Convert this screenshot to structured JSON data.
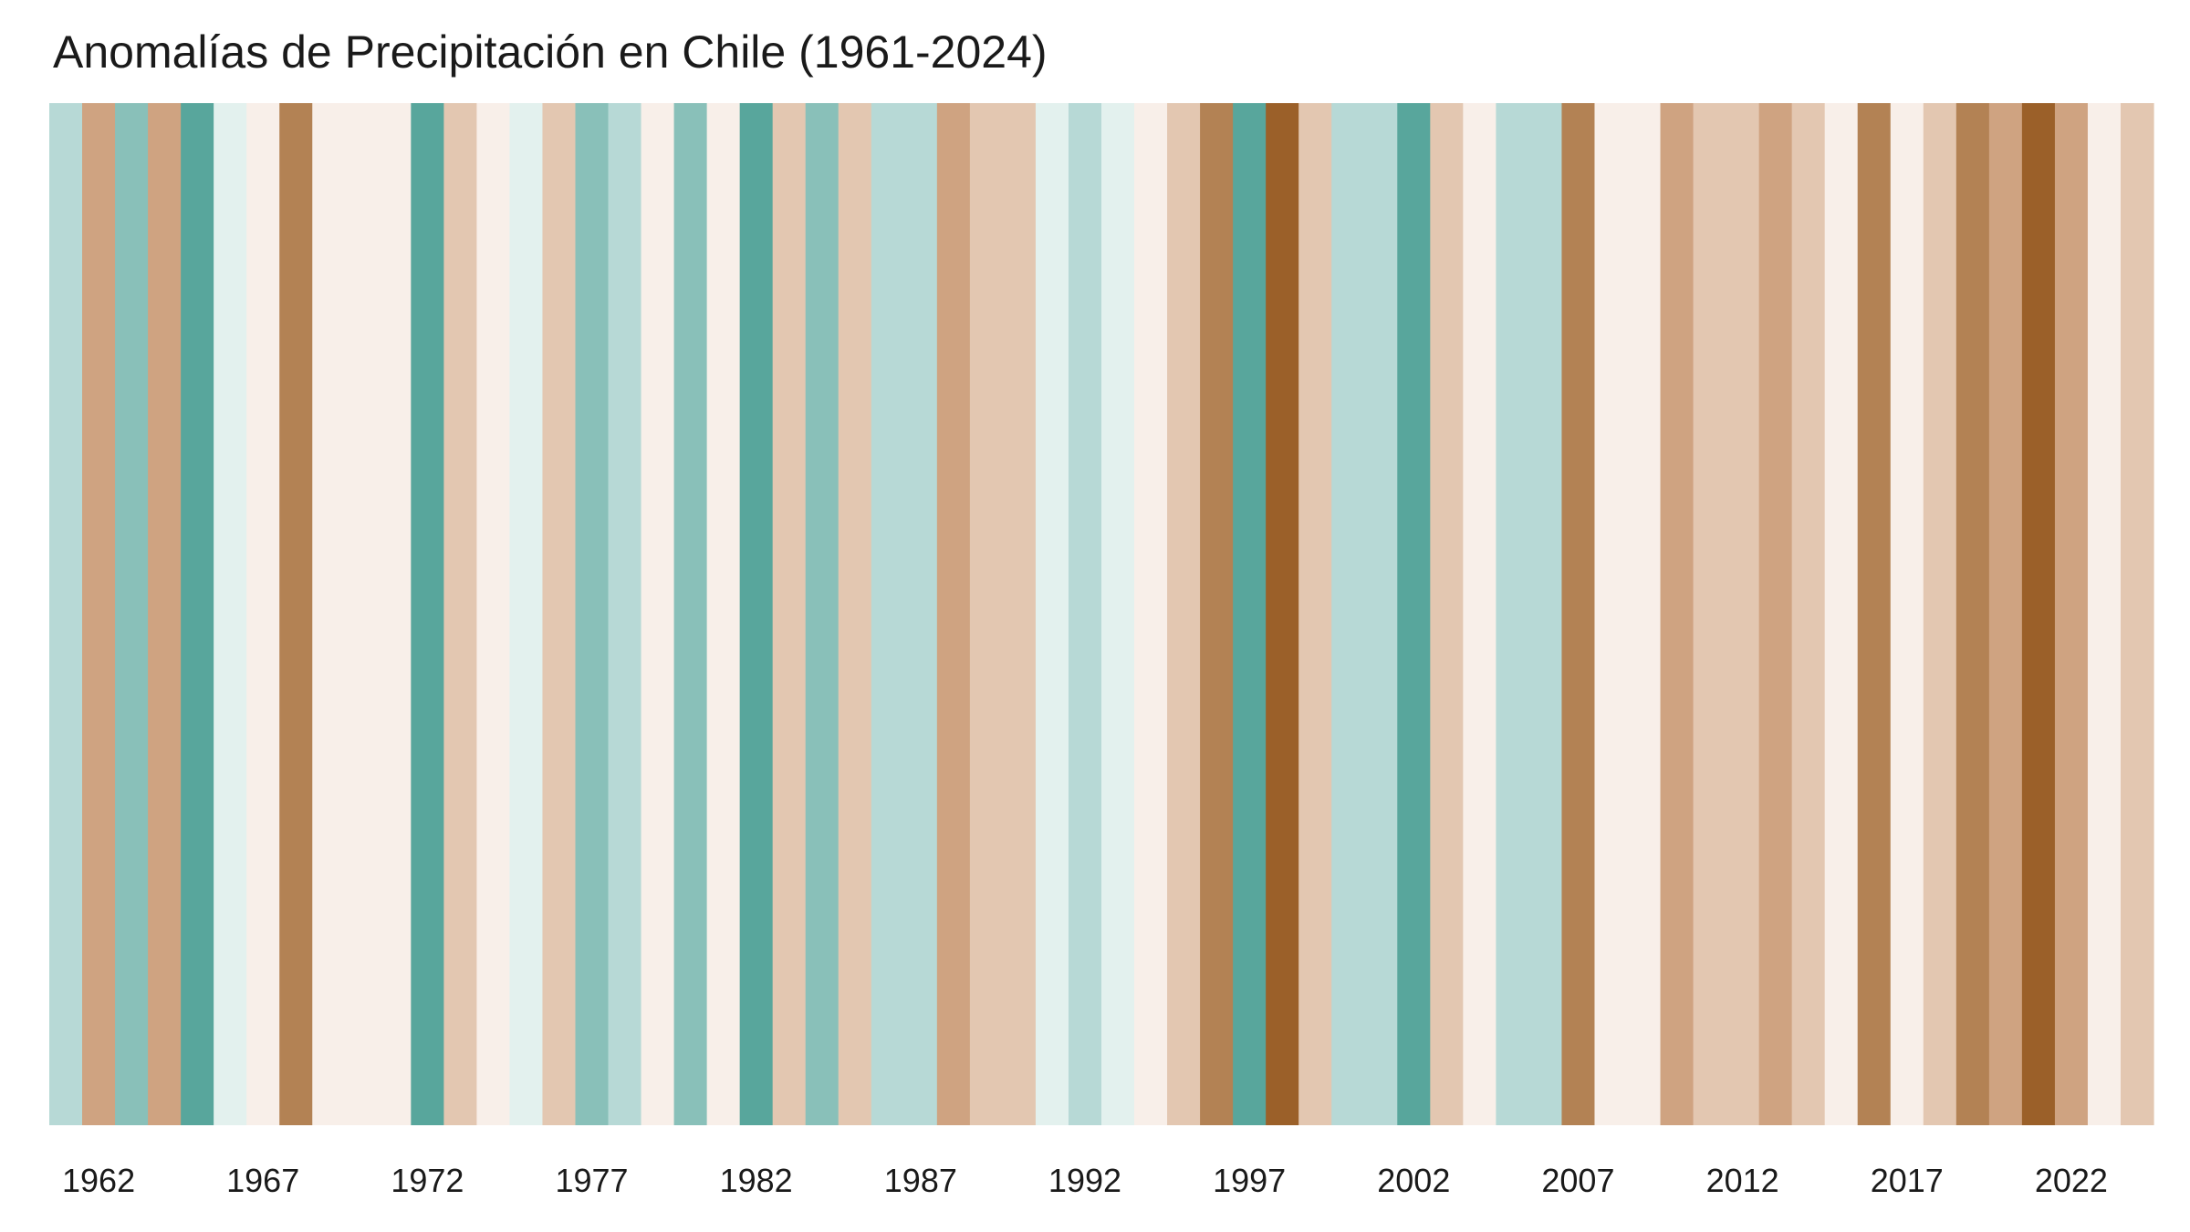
{
  "title": "Anomalías de Precipitación en Chile (1961-2024)",
  "chart_data": {
    "type": "heatmap",
    "title": "Anomalías de Precipitación en Chile (1961-2024)",
    "xlabel": "",
    "ylabel": "",
    "x_range": [
      1961,
      2024
    ],
    "grid": false,
    "legend": "none",
    "tick_labels": [
      "1962",
      "1967",
      "1972",
      "1977",
      "1982",
      "1987",
      "1992",
      "1997",
      "2002",
      "2007",
      "2012",
      "2017",
      "2022"
    ],
    "palette": {
      "wet_strong": "#58a69c",
      "wet_moderate": "#89c0b9",
      "wet_mild": "#b7d9d6",
      "wet_slight": "#e3f1ee",
      "near_normal": "#f8efe9",
      "dry_slight": "#e3c7b1",
      "dry_mild": "#cfa381",
      "dry_moderate": "#b38254",
      "dry_strong": "#9b6029"
    },
    "years": [
      1961,
      1962,
      1963,
      1964,
      1965,
      1966,
      1967,
      1968,
      1969,
      1970,
      1971,
      1972,
      1973,
      1974,
      1975,
      1976,
      1977,
      1978,
      1979,
      1980,
      1981,
      1982,
      1983,
      1984,
      1985,
      1986,
      1987,
      1988,
      1989,
      1990,
      1991,
      1992,
      1993,
      1994,
      1995,
      1996,
      1997,
      1998,
      1999,
      2000,
      2001,
      2002,
      2003,
      2004,
      2005,
      2006,
      2007,
      2008,
      2009,
      2010,
      2011,
      2012,
      2013,
      2014,
      2015,
      2016,
      2017,
      2018,
      2019,
      2020,
      2021,
      2022,
      2023,
      2024
    ],
    "colors": [
      "#b7d9d6",
      "#cfa381",
      "#89c0b9",
      "#cfa381",
      "#58a69c",
      "#e3f1ee",
      "#f8efe9",
      "#b38254",
      "#f8efe9",
      "#f8efe9",
      "#f8efe9",
      "#58a69c",
      "#e3c7b1",
      "#f8efe9",
      "#e3f1ee",
      "#e3c7b1",
      "#89c0b9",
      "#b7d9d6",
      "#f8efe9",
      "#89c0b9",
      "#f8efe9",
      "#58a69c",
      "#e3c7b1",
      "#89c0b9",
      "#e3c7b1",
      "#b7d9d6",
      "#b7d9d6",
      "#cfa381",
      "#e3c7b1",
      "#e3c7b1",
      "#e3f1ee",
      "#b7d9d6",
      "#e3f1ee",
      "#f8efe9",
      "#e3c7b1",
      "#b38254",
      "#58a69c",
      "#9b6029",
      "#e3c7b1",
      "#b7d9d6",
      "#b7d9d6",
      "#58a69c",
      "#e3c7b1",
      "#f8efe9",
      "#b7d9d6",
      "#b7d9d6",
      "#b38254",
      "#f8efe9",
      "#f8efe9",
      "#cfa381",
      "#e3c7b1",
      "#e3c7b1",
      "#cfa381",
      "#e3c7b1",
      "#f8efe9",
      "#b38254",
      "#f8efe9",
      "#e3c7b1",
      "#b38254",
      "#cfa381",
      "#9b6029",
      "#cfa381",
      "#f8efe9",
      "#e3c7b1"
    ]
  }
}
